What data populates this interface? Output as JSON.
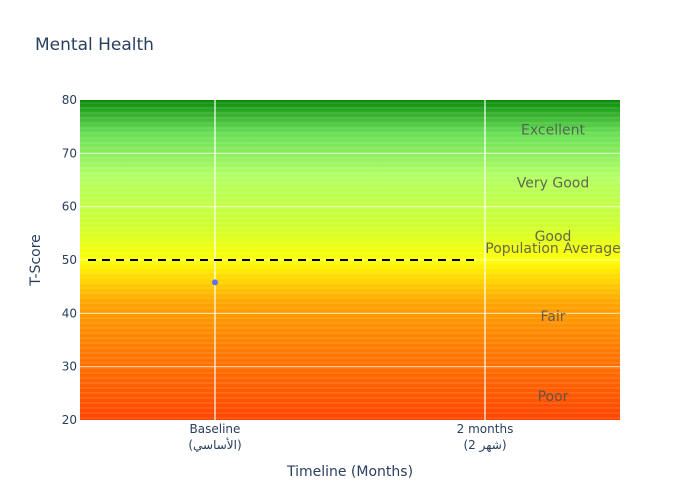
{
  "chart_data": {
    "type": "scatter",
    "title": "Mental Health",
    "xlabel": "Timeline (Months)",
    "ylabel": "T-Score",
    "ylim": [
      20,
      80
    ],
    "yticks": [
      20,
      30,
      40,
      50,
      60,
      70,
      80
    ],
    "categories": [
      {
        "label": "Baseline",
        "sublabel": "(الأساسي)"
      },
      {
        "label": "2 months",
        "sublabel": "(شهر 2)"
      }
    ],
    "series": [
      {
        "x_index": [
          0
        ],
        "values": [
          45.8
        ],
        "color": "#636efa"
      }
    ],
    "reference_line": {
      "label": "Population Average",
      "value": 50,
      "style": "dashed",
      "color": "#000000"
    },
    "bands": [
      {
        "label": "Poor",
        "label_value": 24.5
      },
      {
        "label": "Fair",
        "label_value": 39.5
      },
      {
        "label": "Good",
        "label_value": 54.5
      },
      {
        "label": "Very Good",
        "label_value": 64.5
      },
      {
        "label": "Excellent",
        "label_value": 74.5
      }
    ],
    "background_gradient": [
      {
        "value": 20,
        "color": "#ff4500"
      },
      {
        "value": 33,
        "color": "#ff7a00"
      },
      {
        "value": 42,
        "color": "#ffa500"
      },
      {
        "value": 50,
        "color": "#ffff00"
      },
      {
        "value": 57,
        "color": "#ccff33"
      },
      {
        "value": 66,
        "color": "#b2ff66"
      },
      {
        "value": 74,
        "color": "#66dd55"
      },
      {
        "value": 80,
        "color": "#0a8a0a"
      }
    ],
    "grid": true
  }
}
